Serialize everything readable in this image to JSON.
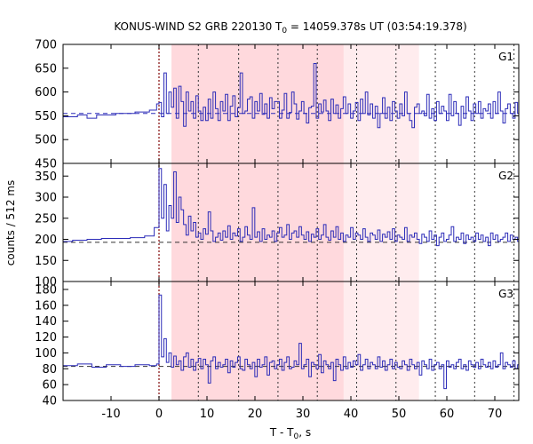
{
  "chart_data": {
    "type": "line",
    "title": "KONUS-WIND S2 GRB 220130 T",
    "title_sub": "0",
    "title_rest": " = 14059.378s UT (03:54:19.378)",
    "xlabel": "T - T",
    "xlabel_sub": "0",
    "xlabel_rest": ", s",
    "ylabel": "counts / 512 ms",
    "xlim": [
      -20,
      75
    ],
    "x_ticks": [
      -10,
      0,
      10,
      20,
      30,
      40,
      50,
      60,
      70
    ],
    "x_tick_labels": [
      "-10",
      "0",
      "10",
      "20",
      "30",
      "40",
      "50",
      "60",
      "70"
    ],
    "shaded_regions": [
      {
        "from": 2.6,
        "to": 38.5,
        "color": "#ffd9dd"
      },
      {
        "from": 38.5,
        "to": 54.2,
        "color": "#ffecee"
      }
    ],
    "vertical_lines": [
      0,
      8.2,
      16.6,
      24.8,
      33.0,
      41.2,
      49.4,
      57.6,
      65.8,
      74.0
    ],
    "line_color": "#2b2bb8",
    "panels": [
      {
        "label": "G1",
        "ylim": [
          450,
          700
        ],
        "y_ticks": [
          450,
          500,
          550,
          600,
          650,
          700
        ],
        "y_tick_labels": [
          "450",
          "500",
          "550",
          "600",
          "650",
          "700"
        ],
        "background": 555,
        "pre": [
          [
            -20,
            548
          ],
          [
            -17,
            552
          ],
          [
            -15,
            545
          ],
          [
            -13,
            552
          ],
          [
            -9,
            555
          ],
          [
            -5,
            558
          ],
          [
            -2,
            562
          ],
          [
            -0.5,
            575
          ]
        ],
        "post": [
          578,
          548,
          640,
          555,
          600,
          568,
          608,
          545,
          612,
          580,
          528,
          600,
          560,
          580,
          545,
          592,
          560,
          540,
          568,
          540,
          585,
          545,
          600,
          565,
          540,
          580,
          560,
          595,
          540,
          570,
          592,
          548,
          567,
          640,
          555,
          560,
          585,
          590,
          545,
          580,
          560,
          597,
          553,
          575,
          545,
          588,
          565,
          580,
          580,
          545,
          562,
          597,
          545,
          557,
          600,
          575,
          543,
          560,
          580,
          555,
          535,
          567,
          570,
          660,
          545,
          575,
          558,
          583,
          560,
          540,
          585,
          555,
          573,
          545,
          565,
          590,
          555,
          575,
          545,
          560,
          578,
          540,
          585,
          555,
          600,
          552,
          575,
          545,
          570,
          525,
          555,
          588,
          545,
          568,
          540,
          580,
          560,
          545,
          575,
          550,
          600,
          555,
          540,
          525,
          568,
          575,
          555,
          560,
          550,
          595,
          545,
          565,
          540,
          580,
          555,
          570,
          560,
          540,
          595,
          550,
          580,
          555,
          530,
          570,
          545,
          590,
          560,
          540,
          575,
          555,
          580,
          545,
          565,
          560,
          575,
          545,
          580,
          555,
          600,
          560,
          535,
          565,
          575,
          555,
          545,
          578,
          555,
          540,
          560
        ]
      },
      {
        "label": "G2",
        "ylim": [
          100,
          380
        ],
        "y_ticks": [
          100,
          150,
          200,
          250,
          300,
          350
        ],
        "y_tick_labels": [
          "100",
          "150",
          "200",
          "250",
          "300",
          "350"
        ],
        "background": 193,
        "pre": [
          [
            -20,
            195
          ],
          [
            -18,
            198
          ],
          [
            -15,
            200
          ],
          [
            -12,
            202
          ],
          [
            -9,
            202
          ],
          [
            -6,
            204
          ],
          [
            -3,
            208
          ],
          [
            -1,
            228
          ]
        ],
        "post": [
          368,
          250,
          330,
          220,
          280,
          250,
          360,
          240,
          300,
          270,
          235,
          210,
          255,
          220,
          240,
          205,
          215,
          200,
          225,
          212,
          265,
          220,
          195,
          205,
          215,
          198,
          220,
          205,
          232,
          200,
          215,
          208,
          225,
          195,
          205,
          230,
          210,
          200,
          275,
          205,
          218,
          195,
          225,
          200,
          210,
          205,
          220,
          195,
          215,
          228,
          205,
          210,
          235,
          200,
          215,
          220,
          205,
          230,
          210,
          200,
          218,
          195,
          212,
          205,
          225,
          200,
          210,
          235,
          205,
          198,
          220,
          205,
          230,
          200,
          215,
          195,
          210,
          205,
          228,
          200,
          215,
          210,
          200,
          225,
          205,
          195,
          215,
          210,
          200,
          222,
          195,
          212,
          205,
          218,
          200,
          225,
          195,
          210,
          205,
          200,
          228,
          195,
          210,
          205,
          215,
          200,
          190,
          212,
          205,
          195,
          220,
          200,
          210,
          185,
          205,
          215,
          195,
          200,
          210,
          230,
          195,
          205,
          200,
          215,
          190,
          210,
          200,
          205,
          195,
          215,
          200,
          210,
          195,
          205,
          185,
          215,
          200,
          210,
          195,
          200,
          205,
          215,
          195,
          210,
          200,
          205,
          195,
          215,
          200,
          205,
          210,
          195,
          200
        ]
      },
      {
        "label": "G3",
        "ylim": [
          40,
          190
        ],
        "y_ticks": [
          40,
          60,
          80,
          100,
          120,
          140,
          160,
          180
        ],
        "y_tick_labels": [
          "40",
          "60",
          "80",
          "100",
          "120",
          "140",
          "160",
          "180"
        ],
        "background": 83,
        "pre": [
          [
            -20,
            84
          ],
          [
            -17,
            86
          ],
          [
            -14,
            82
          ],
          [
            -11,
            85
          ],
          [
            -8,
            83
          ],
          [
            -5,
            85
          ],
          [
            -2,
            84
          ],
          [
            -0.5,
            86
          ]
        ],
        "post": [
          173,
          95,
          118,
          88,
          100,
          82,
          96,
          85,
          90,
          78,
          95,
          100,
          82,
          92,
          78,
          88,
          93,
          80,
          92,
          85,
          62,
          90,
          95,
          80,
          88,
          82,
          85,
          92,
          75,
          90,
          82,
          88,
          95,
          80,
          78,
          92,
          85,
          80,
          88,
          70,
          92,
          82,
          85,
          95,
          72,
          88,
          90,
          80,
          85,
          92,
          78,
          88,
          95,
          80,
          82,
          90,
          85,
          112,
          80,
          85,
          92,
          70,
          88,
          85,
          80,
          98,
          75,
          90,
          85,
          80,
          88,
          65,
          92,
          85,
          78,
          95,
          80,
          88,
          82,
          90,
          85,
          98,
          78,
          85,
          92,
          80,
          88,
          85,
          80,
          95,
          82,
          90,
          78,
          85,
          92,
          80,
          88,
          82,
          80,
          90,
          85,
          78,
          92,
          85,
          80,
          88,
          72,
          90,
          85,
          80,
          92,
          78,
          85,
          88,
          80,
          85,
          55,
          90,
          82,
          85,
          80,
          88,
          92,
          80,
          85,
          78,
          90,
          85,
          82,
          88,
          80,
          92,
          85,
          82,
          88,
          80,
          90,
          82,
          85,
          100,
          80,
          88,
          85,
          82,
          90,
          80,
          85,
          88
        ]
      }
    ]
  }
}
